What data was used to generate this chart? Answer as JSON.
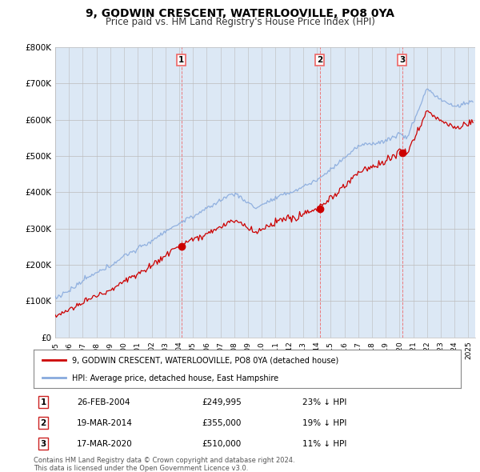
{
  "title": "9, GODWIN CRESCENT, WATERLOOVILLE, PO8 0YA",
  "subtitle": "Price paid vs. HM Land Registry's House Price Index (HPI)",
  "ylim": [
    0,
    800000
  ],
  "yticks": [
    0,
    100000,
    200000,
    300000,
    400000,
    500000,
    600000,
    700000,
    800000
  ],
  "ytick_labels": [
    "£0",
    "£100K",
    "£200K",
    "£300K",
    "£400K",
    "£500K",
    "£600K",
    "£700K",
    "£800K"
  ],
  "sale_color": "#cc0000",
  "hpi_color": "#88aadd",
  "vline_color": "#ee6666",
  "bg_color": "#dce8f5",
  "grid_color": "#bbbbbb",
  "sale_dates": [
    "2004-02-26",
    "2014-03-19",
    "2020-03-17"
  ],
  "sale_prices": [
    249995,
    355000,
    510000
  ],
  "sale_labels": [
    "1",
    "2",
    "3"
  ],
  "table_rows": [
    [
      "1",
      "26-FEB-2004",
      "£249,995",
      "23% ↓ HPI"
    ],
    [
      "2",
      "19-MAR-2014",
      "£355,000",
      "19% ↓ HPI"
    ],
    [
      "3",
      "17-MAR-2020",
      "£510,000",
      "11% ↓ HPI"
    ]
  ],
  "legend_line1": "9, GODWIN CRESCENT, WATERLOOVILLE, PO8 0YA (detached house)",
  "legend_line2": "HPI: Average price, detached house, East Hampshire",
  "footer": "Contains HM Land Registry data © Crown copyright and database right 2024.\nThis data is licensed under the Open Government Licence v3.0.",
  "title_fontsize": 10,
  "subtitle_fontsize": 8.5
}
